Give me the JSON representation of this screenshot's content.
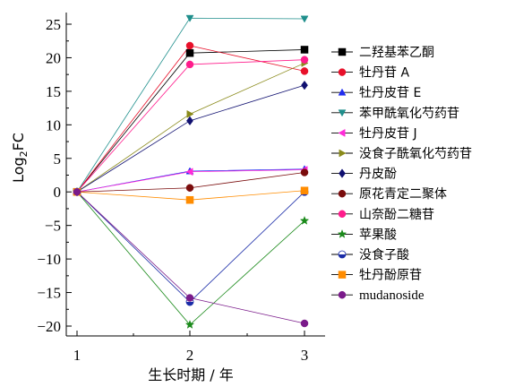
{
  "chart_data": {
    "type": "line",
    "title": "",
    "xlabel": "生长时期 / 年",
    "ylabel": "Log",
    "ylabel_subscript": "2",
    "ylabel_suffix": "FC",
    "x": [
      1,
      2,
      3
    ],
    "xticks": [
      "1",
      "2",
      "3"
    ],
    "ylim": [
      -21,
      26
    ],
    "yticks": [
      25,
      20,
      15,
      10,
      5,
      0,
      -5,
      -10,
      -15,
      -20
    ],
    "ytick_labels": [
      "25",
      "20",
      "15",
      "10",
      "5",
      "0",
      "−5",
      "−10",
      "−15",
      "−20"
    ],
    "legend_position": "right",
    "series": [
      {
        "name": "二羟基苯乙酮",
        "values": [
          0,
          20.7,
          21.2
        ],
        "color": "#000000",
        "marker": "square"
      },
      {
        "name": "牡丹苷 A",
        "values": [
          0,
          21.8,
          18.0
        ],
        "color": "#e8102a",
        "marker": "circle"
      },
      {
        "name": "牡丹皮苷 E",
        "values": [
          0,
          3.1,
          3.4
        ],
        "color": "#1f2cf0",
        "marker": "triangle-up"
      },
      {
        "name": "苯甲酰氧化芍药苷",
        "values": [
          0,
          25.9,
          25.8
        ],
        "color": "#1f8f8c",
        "marker": "triangle-down"
      },
      {
        "name": "牡丹皮苷 J",
        "values": [
          0,
          3.0,
          3.3
        ],
        "color": "#ff2bd8",
        "marker": "triangle-left"
      },
      {
        "name": "没食子酰氧化芍药苷",
        "values": [
          0,
          11.6,
          19.2
        ],
        "color": "#8a8a1a",
        "marker": "triangle-right"
      },
      {
        "name": "丹皮酚",
        "values": [
          0,
          10.6,
          15.9
        ],
        "color": "#101070",
        "marker": "diamond"
      },
      {
        "name": "原花青定二聚体",
        "values": [
          0,
          0.6,
          2.9
        ],
        "color": "#7a0c0c",
        "marker": "circle"
      },
      {
        "name": "山奈酚二糖苷",
        "values": [
          0,
          19.0,
          19.7
        ],
        "color": "#ff1c8c",
        "marker": "circle"
      },
      {
        "name": "苹果酸",
        "values": [
          0,
          -19.8,
          -4.3
        ],
        "color": "#1a8a1a",
        "marker": "star"
      },
      {
        "name": "没食子酸",
        "values": [
          0,
          -16.4,
          0.0
        ],
        "color": "#1a2ca8",
        "marker": "half-circle"
      },
      {
        "name": "牡丹酚原苷",
        "values": [
          0,
          -1.2,
          0.2
        ],
        "color": "#ff8c00",
        "marker": "square"
      },
      {
        "name": "mudanoside",
        "values": [
          0,
          -15.8,
          -19.6
        ],
        "color": "#7a1a8a",
        "marker": "circle"
      }
    ]
  }
}
